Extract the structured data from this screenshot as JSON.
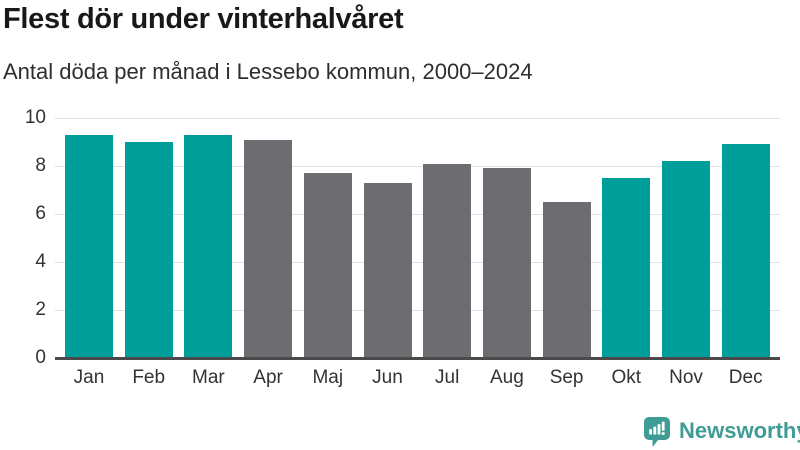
{
  "header": {
    "title": "Flest dör under vinterhalvåret",
    "subtitle": "Antal döda per månad i Lessebo kommun, 2000–2024"
  },
  "chart_data": {
    "type": "bar",
    "categories": [
      "Jan",
      "Feb",
      "Mar",
      "Apr",
      "Maj",
      "Jun",
      "Jul",
      "Aug",
      "Sep",
      "Okt",
      "Nov",
      "Dec"
    ],
    "values": [
      9.3,
      9.0,
      9.3,
      9.1,
      7.7,
      7.3,
      8.1,
      7.9,
      6.5,
      7.5,
      8.2,
      8.9
    ],
    "bar_groups": [
      "winter",
      "winter",
      "winter",
      "summer",
      "summer",
      "summer",
      "summer",
      "summer",
      "summer",
      "winter",
      "winter",
      "winter"
    ],
    "title": "Flest dör under vinterhalvåret",
    "subtitle": "Antal döda per månad i Lessebo kommun, 2000–2024",
    "xlabel": "",
    "ylabel": "",
    "ylim": [
      0,
      10
    ],
    "yticks": [
      0,
      2,
      4,
      6,
      8,
      10
    ],
    "grid": true,
    "legend": false
  },
  "colors": {
    "winter_bar": "#009e98",
    "summer_bar": "#6d6d71",
    "gridline": "#e2e2e2",
    "axis_line": "#4a4a4a",
    "title_text": "#191919",
    "subtitle_text": "#2e2e2e",
    "tick_text": "#333333",
    "logo_teal": "#3f9c95"
  },
  "footer": {
    "brand": "Newsworthy"
  },
  "icons": {
    "logo": "newsworthy-speech-bubble-barchart-icon"
  }
}
